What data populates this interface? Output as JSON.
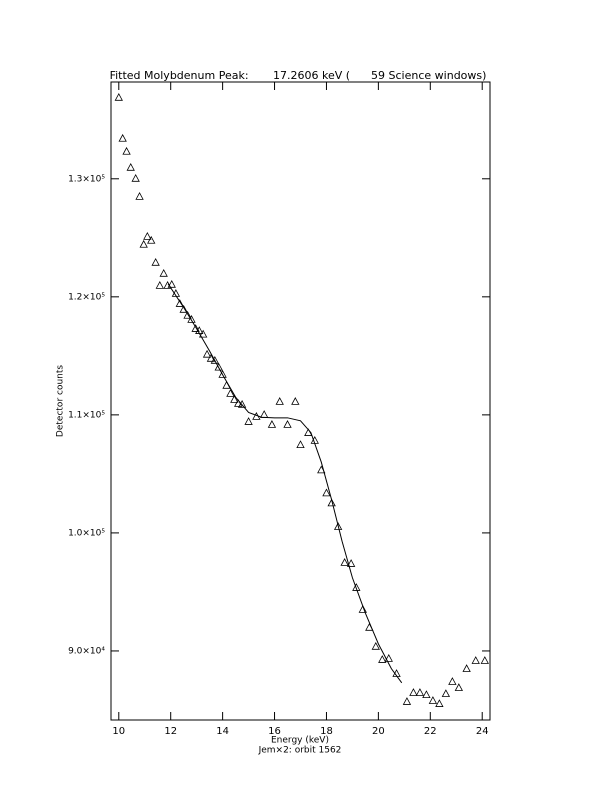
{
  "chart_data": {
    "type": "scatter",
    "title": "Fitted Molybdenum Peak:       17.2606 keV (      59 Science windows)",
    "x_label": "Energy (keV)",
    "subtitle": "Jem×2: orbit 1562",
    "y_label": "Detector counts",
    "xlim": [
      9.7,
      24.3
    ],
    "ylim": [
      84150,
      138200
    ],
    "xticks": [
      10,
      12,
      14,
      16,
      18,
      20,
      22,
      24
    ],
    "yticks": [
      {
        "value": 90000,
        "label": "9.0×10⁴"
      },
      {
        "value": 100000,
        "label": "1.0×10⁵"
      },
      {
        "value": 110000,
        "label": "1.1×10⁵"
      },
      {
        "value": 120000,
        "label": "1.2×10⁵"
      },
      {
        "value": 130000,
        "label": "1.3×10⁵"
      }
    ],
    "series": [
      {
        "color": "#000000",
        "marker": "triangle",
        "x": [
          10.0,
          10.15,
          10.3,
          10.46,
          10.65,
          10.8,
          10.96,
          11.1,
          11.25,
          11.42,
          11.58,
          11.73,
          11.88,
          12.04,
          12.2,
          12.35,
          12.5,
          12.65,
          12.8,
          12.96,
          13.1,
          13.25,
          13.4,
          13.55,
          13.7,
          13.85,
          14.0,
          14.15,
          14.3,
          14.45,
          14.6,
          14.75,
          15.0,
          15.3,
          15.6,
          15.9,
          16.2,
          16.5,
          16.8,
          17.0,
          17.3,
          17.55,
          17.8,
          18.0,
          18.2,
          18.45,
          18.7,
          18.95,
          19.15,
          19.4,
          19.65,
          19.9,
          20.15,
          20.4,
          20.7,
          21.1,
          21.35,
          21.6,
          21.85,
          22.1,
          22.35,
          22.6,
          22.85,
          23.1,
          23.4,
          23.75,
          24.1
        ],
        "values": [
          136860,
          133390,
          132290,
          130930,
          130000,
          128470,
          124410,
          125080,
          124750,
          122880,
          120930,
          121950,
          120930,
          121020,
          120250,
          119400,
          118900,
          118400,
          118050,
          117280,
          117100,
          116800,
          115100,
          114750,
          114580,
          114000,
          113390,
          112460,
          111780,
          111270,
          110930,
          110850,
          109400,
          109830,
          109990,
          109150,
          111100,
          109150,
          111100,
          107440,
          108460,
          107800,
          105300,
          103350,
          102500,
          100500,
          97460,
          97370,
          95340,
          93480,
          91960,
          90350,
          89240,
          89330,
          88050,
          85680,
          86440,
          86440,
          86260,
          85760,
          85500,
          86350,
          87370,
          86860,
          88470,
          89150,
          89150
        ]
      },
      {
        "color": "#000000",
        "marker": "line",
        "x": [
          11.9,
          12.5,
          13.0,
          13.5,
          14.0,
          14.5,
          15.0,
          15.5,
          16.0,
          16.5,
          17.0,
          17.4,
          17.8,
          18.2,
          18.6,
          19.0,
          19.5,
          20.0,
          20.5,
          20.9
        ],
        "values": [
          121100,
          119100,
          117300,
          115400,
          113400,
          111500,
          110200,
          109800,
          109750,
          109750,
          109500,
          108500,
          106000,
          102800,
          99300,
          96200,
          93200,
          90600,
          88500,
          87300
        ]
      }
    ]
  }
}
